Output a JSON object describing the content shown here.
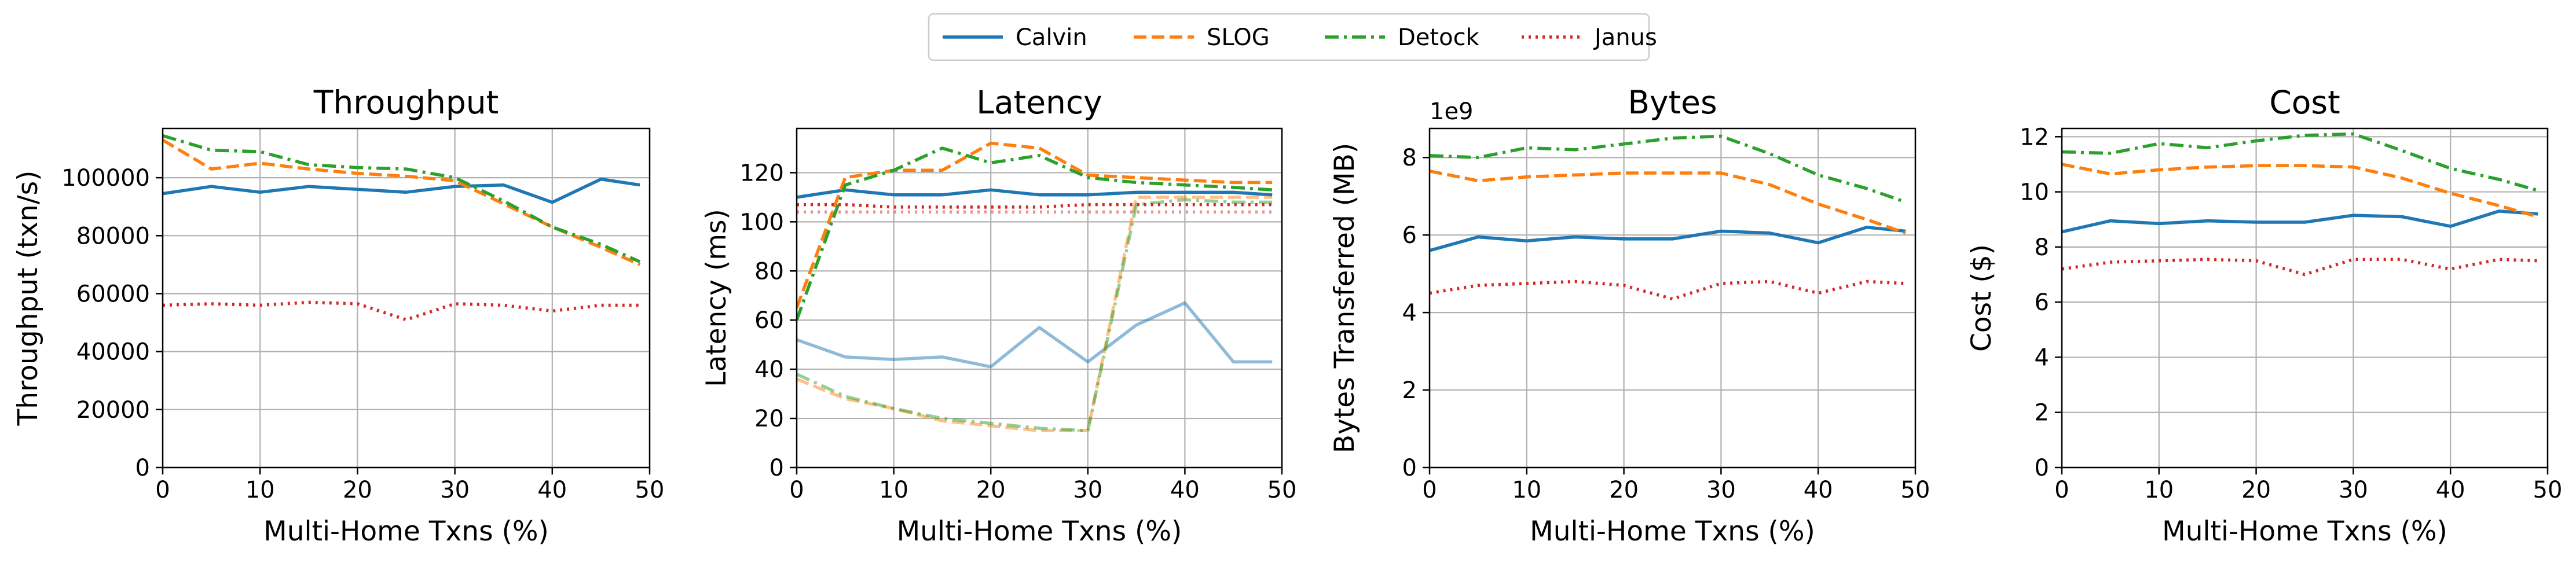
{
  "legend": {
    "placement": "top-center",
    "entries": [
      {
        "name": "Calvin",
        "color": "#1f77b4",
        "dash": "solid"
      },
      {
        "name": "SLOG",
        "color": "#ff7f0e",
        "dash": "dashed"
      },
      {
        "name": "Detock",
        "color": "#2ca02c",
        "dash": "dashdot"
      },
      {
        "name": "Janus",
        "color": "#d62728",
        "dash": "dotted"
      }
    ]
  },
  "chart_data": [
    {
      "type": "line",
      "title": "Throughput",
      "xlabel": "Multi-Home Txns (%)",
      "ylabel": "Throughput (txn/s)",
      "grid": true,
      "xlim": [
        0,
        50
      ],
      "ylim": [
        0,
        117000
      ],
      "xticks": [
        0,
        10,
        20,
        30,
        40,
        50
      ],
      "yticks": [
        0,
        20000,
        40000,
        60000,
        80000,
        100000
      ],
      "x": [
        0,
        5,
        10,
        15,
        20,
        25,
        30,
        35,
        40,
        45,
        49
      ],
      "series": [
        {
          "name": "Calvin",
          "color": "#1f77b4",
          "dash": "solid",
          "values": [
            94500,
            97000,
            95000,
            97000,
            96000,
            95000,
            97000,
            97500,
            91500,
            99500,
            97500
          ]
        },
        {
          "name": "SLOG",
          "color": "#ff7f0e",
          "dash": "dashed",
          "values": [
            113000,
            103000,
            105000,
            103000,
            101500,
            100500,
            99000,
            91000,
            83000,
            76000,
            70000
          ]
        },
        {
          "name": "Detock",
          "color": "#2ca02c",
          "dash": "dashdot",
          "values": [
            114500,
            109500,
            109000,
            104500,
            103500,
            103000,
            100000,
            92000,
            83000,
            77000,
            71000
          ]
        },
        {
          "name": "Janus",
          "color": "#d62728",
          "dash": "dotted",
          "values": [
            56000,
            56500,
            56000,
            57000,
            56500,
            51000,
            56500,
            56000,
            54000,
            56000,
            56000
          ]
        }
      ]
    },
    {
      "type": "line",
      "title": "Latency",
      "xlabel": "Multi-Home Txns (%)",
      "ylabel": "Latency (ms)",
      "grid": true,
      "xlim": [
        0,
        50
      ],
      "ylim": [
        0,
        138
      ],
      "xticks": [
        0,
        10,
        20,
        30,
        40,
        50
      ],
      "yticks": [
        0,
        20,
        40,
        60,
        80,
        100,
        120
      ],
      "x": [
        0,
        5,
        10,
        15,
        20,
        25,
        30,
        35,
        40,
        45,
        49
      ],
      "series": [
        {
          "name": "Calvin",
          "color": "#1f77b4",
          "dash": "solid",
          "values": [
            110,
            113,
            111,
            111,
            113,
            111,
            111,
            112,
            112,
            112,
            111
          ]
        },
        {
          "name": "SLOG",
          "color": "#ff7f0e",
          "dash": "dashed",
          "values": [
            65,
            118,
            121,
            121,
            132,
            130,
            119,
            118,
            117,
            116,
            116
          ]
        },
        {
          "name": "Detock",
          "color": "#2ca02c",
          "dash": "dashdot",
          "values": [
            60,
            115,
            121,
            130,
            124,
            127,
            118,
            116,
            115,
            114,
            113
          ]
        },
        {
          "name": "Janus",
          "color": "#d62728",
          "dash": "dotted",
          "values": [
            107,
            107,
            106,
            106,
            106,
            106,
            107,
            107,
            107,
            107,
            107
          ]
        },
        {
          "name": "Calvin",
          "color": "#1f77b4",
          "dash": "solid",
          "faded": true,
          "values": [
            52,
            45,
            44,
            45,
            41,
            57,
            43,
            58,
            67,
            43,
            43
          ]
        },
        {
          "name": "SLOG",
          "color": "#ff7f0e",
          "dash": "dashed",
          "faded": true,
          "values": [
            36,
            28,
            24,
            19,
            17,
            15,
            15,
            110,
            110,
            110,
            110
          ]
        },
        {
          "name": "Detock",
          "color": "#2ca02c",
          "dash": "dashdot",
          "faded": true,
          "values": [
            38,
            29,
            24,
            20,
            18,
            16,
            15,
            107,
            109,
            108,
            108
          ]
        },
        {
          "name": "Janus",
          "color": "#d62728",
          "dash": "dotted",
          "faded": true,
          "values": [
            104,
            104,
            104,
            104,
            104,
            104,
            104,
            104,
            104,
            104,
            104
          ]
        }
      ]
    },
    {
      "type": "line",
      "title": "Bytes",
      "xlabel": "Multi-Home Txns (%)",
      "ylabel": "Bytes Transferred (MB)",
      "offset_text": "1e9",
      "grid": true,
      "xlim": [
        0,
        50
      ],
      "ylim": [
        0,
        8.75
      ],
      "xticks": [
        0,
        10,
        20,
        30,
        40,
        50
      ],
      "yticks": [
        0,
        2,
        4,
        6,
        8
      ],
      "x": [
        0,
        5,
        10,
        15,
        20,
        25,
        30,
        35,
        40,
        45,
        49
      ],
      "series": [
        {
          "name": "Calvin",
          "color": "#1f77b4",
          "dash": "solid",
          "values": [
            5.6,
            5.95,
            5.85,
            5.95,
            5.9,
            5.9,
            6.1,
            6.05,
            5.8,
            6.2,
            6.1
          ]
        },
        {
          "name": "SLOG",
          "color": "#ff7f0e",
          "dash": "dashed",
          "values": [
            7.65,
            7.4,
            7.5,
            7.55,
            7.6,
            7.6,
            7.6,
            7.3,
            6.8,
            6.4,
            6.05
          ]
        },
        {
          "name": "Detock",
          "color": "#2ca02c",
          "dash": "dashdot",
          "values": [
            8.05,
            8.0,
            8.25,
            8.2,
            8.35,
            8.5,
            8.55,
            8.1,
            7.55,
            7.2,
            6.85
          ]
        },
        {
          "name": "Janus",
          "color": "#d62728",
          "dash": "dotted",
          "values": [
            4.5,
            4.7,
            4.75,
            4.8,
            4.7,
            4.35,
            4.75,
            4.8,
            4.5,
            4.8,
            4.75
          ]
        }
      ]
    },
    {
      "type": "line",
      "title": "Cost",
      "xlabel": "Multi-Home Txns (%)",
      "ylabel": "Cost ($)",
      "grid": true,
      "xlim": [
        0,
        50
      ],
      "ylim": [
        0,
        12.3
      ],
      "xticks": [
        0,
        10,
        20,
        30,
        40,
        50
      ],
      "yticks": [
        0,
        2,
        4,
        6,
        8,
        10,
        12
      ],
      "x": [
        0,
        5,
        10,
        15,
        20,
        25,
        30,
        35,
        40,
        45,
        49
      ],
      "series": [
        {
          "name": "Calvin",
          "color": "#1f77b4",
          "dash": "solid",
          "values": [
            8.55,
            8.95,
            8.85,
            8.95,
            8.9,
            8.9,
            9.15,
            9.1,
            8.75,
            9.3,
            9.2
          ]
        },
        {
          "name": "SLOG",
          "color": "#ff7f0e",
          "dash": "dashed",
          "values": [
            11.0,
            10.65,
            10.8,
            10.9,
            10.95,
            10.95,
            10.9,
            10.5,
            9.95,
            9.5,
            9.1
          ]
        },
        {
          "name": "Detock",
          "color": "#2ca02c",
          "dash": "dashdot",
          "values": [
            11.45,
            11.4,
            11.75,
            11.6,
            11.85,
            12.05,
            12.1,
            11.5,
            10.85,
            10.45,
            10.05
          ]
        },
        {
          "name": "Janus",
          "color": "#d62728",
          "dash": "dotted",
          "values": [
            7.2,
            7.45,
            7.5,
            7.55,
            7.5,
            7.0,
            7.55,
            7.55,
            7.2,
            7.55,
            7.5
          ]
        }
      ]
    }
  ]
}
